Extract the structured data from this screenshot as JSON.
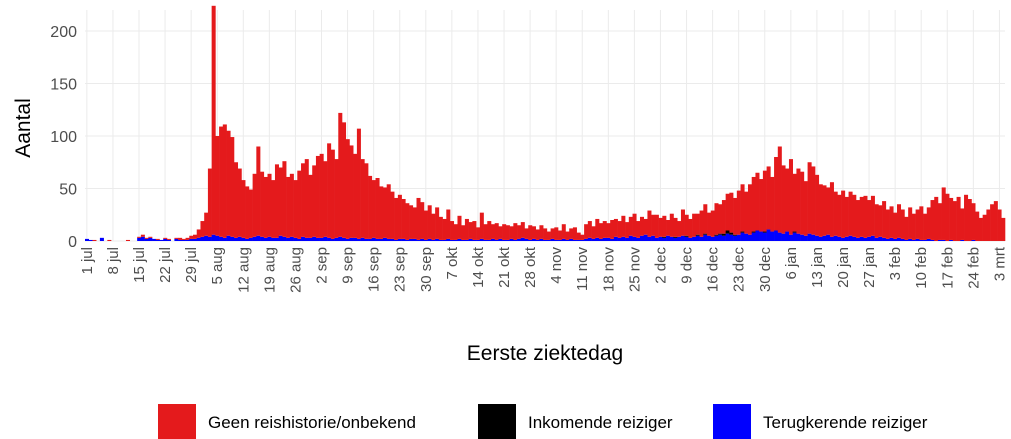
{
  "chart_data": {
    "type": "stacked_bar",
    "xlabel": "Eerste ziektedag",
    "ylabel": "Aantal",
    "ylim": [
      0,
      220
    ],
    "yticks": [
      0,
      50,
      100,
      150,
      200
    ],
    "grid": true,
    "legend": "bottom",
    "categories": [
      "1 jul",
      null,
      null,
      null,
      null,
      null,
      null,
      "8 jul",
      null,
      null,
      null,
      null,
      null,
      null,
      "15 jul",
      null,
      null,
      null,
      null,
      null,
      null,
      "22 jul",
      null,
      null,
      null,
      null,
      null,
      null,
      "29 jul",
      null,
      null,
      null,
      null,
      null,
      null,
      "5 aug",
      null,
      null,
      null,
      null,
      null,
      null,
      "12 aug",
      null,
      null,
      null,
      null,
      null,
      null,
      "19 aug",
      null,
      null,
      null,
      null,
      null,
      null,
      "26 aug",
      null,
      null,
      null,
      null,
      null,
      null,
      "2 sep",
      null,
      null,
      null,
      null,
      null,
      null,
      "9 sep",
      null,
      null,
      null,
      null,
      null,
      null,
      "16 sep",
      null,
      null,
      null,
      null,
      null,
      null,
      "23 sep",
      null,
      null,
      null,
      null,
      null,
      null,
      "30 sep",
      null,
      null,
      null,
      null,
      null,
      null,
      "7 okt",
      null,
      null,
      null,
      null,
      null,
      null,
      "14 okt",
      null,
      null,
      null,
      null,
      null,
      null,
      "21 okt",
      null,
      null,
      null,
      null,
      null,
      null,
      "28 okt",
      null,
      null,
      null,
      null,
      null,
      null,
      "4 nov",
      null,
      null,
      null,
      null,
      null,
      null,
      "11 nov",
      null,
      null,
      null,
      null,
      null,
      null,
      "18 nov",
      null,
      null,
      null,
      null,
      null,
      null,
      "25 nov",
      null,
      null,
      null,
      null,
      null,
      null,
      "2 dec",
      null,
      null,
      null,
      null,
      null,
      null,
      "9 dec",
      null,
      null,
      null,
      null,
      null,
      null,
      "16 dec",
      null,
      null,
      null,
      null,
      null,
      null,
      "23 dec",
      null,
      null,
      null,
      null,
      null,
      null,
      "30 dec",
      null,
      null,
      null,
      null,
      null,
      null,
      "6 jan",
      null,
      null,
      null,
      null,
      null,
      null,
      "13 jan",
      null,
      null,
      null,
      null,
      null,
      null,
      "20 jan",
      null,
      null,
      null,
      null,
      null,
      null,
      "27 jan",
      null,
      null,
      null,
      null,
      null,
      null,
      "3 feb",
      null,
      null,
      null,
      null,
      null,
      null,
      "10 feb",
      null,
      null,
      null,
      null,
      null,
      null,
      "17 feb",
      null,
      null,
      null,
      null,
      null,
      null,
      "24 feb",
      null,
      null,
      null,
      null,
      null,
      null,
      "3 mrt",
      null
    ],
    "series": [
      {
        "name": "Geen reishistorie/onbekend",
        "color": "#e41a1c",
        "values": [
          0,
          0,
          1,
          0,
          0,
          0,
          1,
          0,
          0,
          0,
          0,
          1,
          0,
          0,
          1,
          2,
          1,
          1,
          0,
          1,
          0,
          1,
          1,
          0,
          1,
          2,
          1,
          2,
          3,
          4,
          8,
          15,
          22,
          65,
          218,
          95,
          105,
          108,
          100,
          95,
          72,
          65,
          55,
          50,
          46,
          60,
          85,
          62,
          58,
          60,
          55,
          70,
          65,
          72,
          58,
          60,
          55,
          65,
          70,
          75,
          60,
          68,
          78,
          80,
          72,
          90,
          85,
          75,
          118,
          110,
          95,
          88,
          80,
          105,
          75,
          72,
          60,
          55,
          58,
          50,
          48,
          52,
          45,
          40,
          42,
          38,
          35,
          32,
          30,
          40,
          35,
          28,
          32,
          25,
          30,
          22,
          20,
          28,
          18,
          15,
          22,
          14,
          20,
          16,
          18,
          12,
          25,
          15,
          18,
          14,
          16,
          12,
          15,
          14,
          12,
          16,
          13,
          15,
          10,
          14,
          12,
          10,
          13,
          11,
          8,
          10,
          12,
          9,
          14,
          8,
          10,
          12,
          7,
          5,
          14,
          16,
          12,
          18,
          15,
          16,
          14,
          18,
          17,
          16,
          20,
          15,
          18,
          22,
          16,
          18,
          15,
          25,
          20,
          22,
          18,
          20,
          15,
          22,
          18,
          15,
          25,
          20,
          18,
          22,
          20,
          25,
          28,
          22,
          25,
          30,
          28,
          32,
          35,
          38,
          35,
          42,
          45,
          40,
          48,
          52,
          55,
          50,
          58,
          60,
          52,
          70,
          82,
          65,
          60,
          72,
          55,
          62,
          60,
          52,
          68,
          65,
          58,
          50,
          48,
          45,
          52,
          42,
          40,
          45,
          38,
          42,
          40,
          36,
          38,
          40,
          35,
          38,
          32,
          30,
          35,
          28,
          30,
          25,
          32,
          28,
          22,
          30,
          25,
          28,
          32,
          25,
          30,
          38,
          42,
          35,
          50,
          45,
          40,
          38,
          42,
          30,
          44,
          40,
          35,
          28,
          22,
          25,
          30,
          35,
          38,
          30,
          22
        ]
      },
      {
        "name": "Inkomende reiziger",
        "color": "#000000",
        "values": [
          0,
          0,
          0,
          0,
          0,
          0,
          0,
          0,
          0,
          0,
          0,
          0,
          0,
          0,
          0,
          0,
          0,
          0,
          0,
          0,
          0,
          0,
          0,
          0,
          0,
          0,
          0,
          0,
          0,
          0,
          0,
          0,
          0,
          0,
          0,
          0,
          0,
          0,
          0,
          0,
          0,
          0,
          0,
          0,
          0,
          0,
          0,
          0,
          0,
          0,
          0,
          0,
          0,
          0,
          0,
          0,
          0,
          0,
          0,
          0,
          0,
          0,
          0,
          0,
          0,
          0,
          0,
          0,
          0,
          0,
          0,
          0,
          0,
          0,
          0,
          0,
          0,
          0,
          0,
          0,
          0,
          0,
          0,
          0,
          0,
          0,
          0,
          0,
          0,
          0,
          0,
          0,
          0,
          0,
          0,
          0,
          0,
          0,
          0,
          0,
          0,
          0,
          0,
          0,
          0,
          0,
          0,
          0,
          0,
          0,
          0,
          0,
          0,
          0,
          0,
          0,
          0,
          0,
          0,
          0,
          0,
          0,
          0,
          0,
          0,
          0,
          0,
          0,
          0,
          0,
          0,
          0,
          0,
          0,
          0,
          0,
          0,
          0,
          0,
          0,
          0,
          0,
          0,
          0,
          0,
          0,
          0,
          0,
          0,
          0,
          0,
          0,
          0,
          0,
          0,
          1,
          0,
          0,
          1,
          0,
          0,
          1,
          0,
          0,
          1,
          0,
          1,
          0,
          0,
          1,
          1,
          2,
          3,
          2,
          1,
          0,
          1,
          0,
          0,
          1,
          0,
          0,
          1,
          0,
          0,
          0,
          0,
          0,
          0,
          0,
          1,
          0,
          0,
          0,
          0,
          0,
          0,
          0,
          0,
          0,
          0,
          0,
          0,
          0,
          0,
          0,
          0,
          0,
          0,
          0,
          0,
          0,
          0,
          0,
          0,
          0,
          0,
          0,
          0,
          0,
          0,
          0,
          0,
          0,
          0,
          0,
          0,
          0,
          0,
          0,
          0,
          0,
          0,
          0,
          0,
          0,
          0,
          0,
          0,
          0,
          0,
          0,
          0,
          0,
          0,
          0,
          0
        ]
      },
      {
        "name": "Terugkerende reiziger",
        "color": "#0000ff",
        "values": [
          2,
          1,
          0,
          0,
          3,
          0,
          0,
          0,
          0,
          0,
          0,
          0,
          0,
          0,
          3,
          4,
          2,
          3,
          2,
          1,
          1,
          2,
          1,
          0,
          2,
          1,
          1,
          1,
          2,
          2,
          3,
          4,
          5,
          4,
          6,
          5,
          4,
          3,
          5,
          4,
          3,
          4,
          3,
          2,
          3,
          4,
          5,
          4,
          3,
          4,
          3,
          3,
          5,
          4,
          3,
          4,
          3,
          2,
          4,
          3,
          3,
          4,
          3,
          3,
          4,
          3,
          2,
          3,
          4,
          3,
          2,
          3,
          3,
          2,
          3,
          2,
          2,
          3,
          2,
          2,
          3,
          2,
          2,
          1,
          2,
          2,
          1,
          2,
          2,
          1,
          2,
          1,
          2,
          1,
          2,
          1,
          1,
          2,
          1,
          1,
          2,
          1,
          1,
          2,
          1,
          1,
          2,
          1,
          1,
          2,
          1,
          2,
          1,
          1,
          2,
          1,
          2,
          3,
          2,
          1,
          2,
          1,
          2,
          1,
          1,
          2,
          1,
          1,
          2,
          1,
          2,
          1,
          1,
          1,
          2,
          3,
          2,
          3,
          2,
          3,
          3,
          2,
          4,
          3,
          4,
          3,
          5,
          4,
          3,
          5,
          6,
          4,
          5,
          3,
          4,
          3,
          5,
          4,
          3,
          4,
          5,
          4,
          3,
          4,
          5,
          4,
          6,
          5,
          4,
          5,
          6,
          5,
          7,
          6,
          5,
          6,
          8,
          7,
          6,
          8,
          10,
          9,
          8,
          11,
          9,
          10,
          8,
          7,
          9,
          6,
          8,
          7,
          6,
          5,
          7,
          6,
          5,
          4,
          5,
          6,
          4,
          5,
          4,
          3,
          4,
          5,
          4,
          3,
          4,
          3,
          4,
          5,
          3,
          4,
          3,
          2,
          3,
          2,
          3,
          2,
          1,
          2,
          1,
          2,
          1,
          1,
          2,
          1,
          0,
          1,
          1,
          0,
          1,
          0,
          0,
          1,
          0,
          0,
          1,
          0,
          0,
          0,
          0,
          0,
          0,
          0,
          0
        ]
      }
    ]
  }
}
